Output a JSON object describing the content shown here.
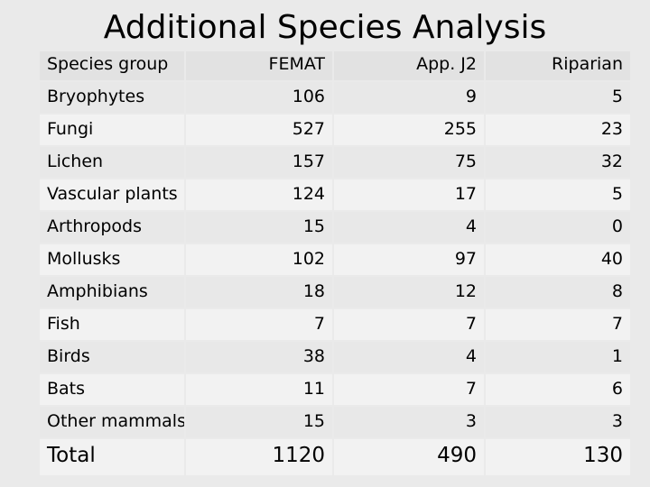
{
  "title": "Additional Species Analysis",
  "table": {
    "headers": [
      "Species group",
      "FEMAT",
      "App. J2",
      "Riparian"
    ],
    "rows": [
      [
        "Bryophytes",
        "106",
        "9",
        "5"
      ],
      [
        "Fungi",
        "527",
        "255",
        "23"
      ],
      [
        "Lichen",
        "157",
        "75",
        "32"
      ],
      [
        "Vascular plants",
        "124",
        "17",
        "5"
      ],
      [
        "Arthropods",
        "15",
        "4",
        "0"
      ],
      [
        "Mollusks",
        "102",
        "97",
        "40"
      ],
      [
        "Amphibians",
        "18",
        "12",
        "8"
      ],
      [
        "Fish",
        "7",
        "7",
        "7"
      ],
      [
        "Birds",
        "38",
        "4",
        "1"
      ],
      [
        "Bats",
        "11",
        "7",
        "6"
      ],
      [
        "Other mammals",
        "15",
        "3",
        "3"
      ]
    ],
    "total": [
      "Total",
      "1120",
      "490",
      "130"
    ]
  }
}
